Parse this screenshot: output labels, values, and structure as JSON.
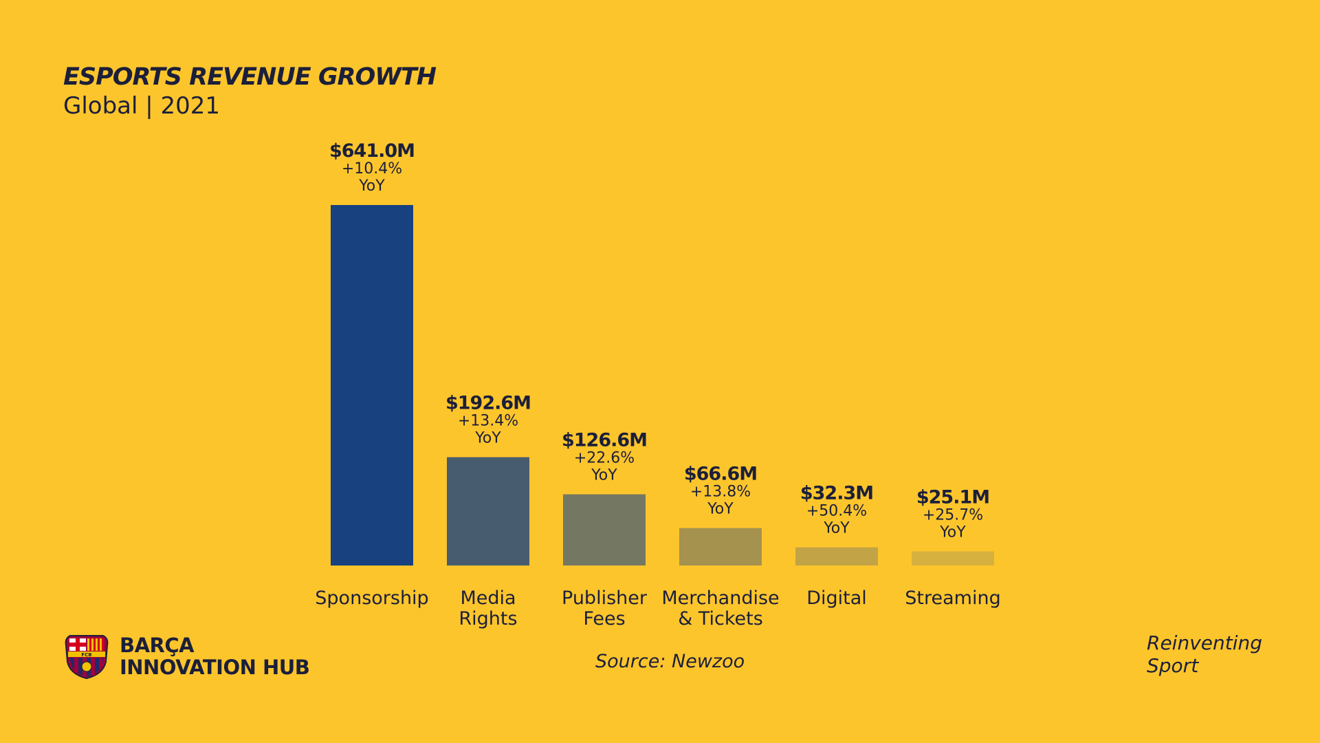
{
  "header": {
    "title": "ESPORTS REVENUE GROWTH",
    "subtitle": "Global | 2021"
  },
  "chart_data": {
    "type": "bar",
    "title": "ESPORTS REVENUE GROWTH",
    "subtitle": "Global | 2021",
    "categories": [
      [
        "Sponsorship"
      ],
      [
        "Media",
        "Rights"
      ],
      [
        "Publisher",
        "Fees"
      ],
      [
        "Merchandise",
        "& Tickets"
      ],
      [
        "Digital"
      ],
      [
        "Streaming"
      ]
    ],
    "values": [
      641.0,
      192.6,
      126.6,
      66.6,
      32.3,
      25.1
    ],
    "value_labels": [
      "$641.0M",
      "$192.6M",
      "$126.6M",
      "$66.6M",
      "$32.3M",
      "$25.1M"
    ],
    "growth_labels": [
      "+10.4%",
      "+13.4%",
      "+22.6%",
      "+13.8%",
      "+50.4%",
      "+25.7%"
    ],
    "growth_suffix": "YoY",
    "unit": "$M",
    "colors": [
      "#17417f",
      "#485c70",
      "#747862",
      "#a5924f",
      "#c2a446",
      "#d6b13f"
    ],
    "grid": false,
    "legend": "none"
  },
  "footer": {
    "brand_line1": "BARÇA",
    "brand_line2": "INNOVATION HUB",
    "source": "Source: Newzoo",
    "tagline_line1": "Reinventing",
    "tagline_line2": "Sport",
    "crest_text": "FCB"
  }
}
